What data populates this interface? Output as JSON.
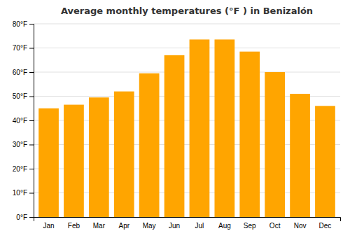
{
  "chart_data": {
    "type": "bar",
    "title": "Average monthly temperatures (°F ) in Benizalón",
    "categories": [
      "Jan",
      "Feb",
      "Mar",
      "Apr",
      "May",
      "Jun",
      "Jul",
      "Aug",
      "Sep",
      "Oct",
      "Nov",
      "Dec"
    ],
    "values": [
      45,
      46.5,
      49.5,
      52,
      59.5,
      67,
      73.5,
      73.5,
      68.5,
      60,
      51,
      46
    ],
    "color": "#FFA500",
    "ylim": [
      0,
      80
    ],
    "yticks": [
      {
        "value": 0,
        "label": "0°F"
      },
      {
        "value": 10,
        "label": "10°F"
      },
      {
        "value": 20,
        "label": "20°F"
      },
      {
        "value": 30,
        "label": "30°F"
      },
      {
        "value": 40,
        "label": "40°F"
      },
      {
        "value": 50,
        "label": "50°F"
      },
      {
        "value": 60,
        "label": "60°F"
      },
      {
        "value": 70,
        "label": "70°F"
      },
      {
        "value": 80,
        "label": "80°F"
      }
    ],
    "grid": true
  }
}
